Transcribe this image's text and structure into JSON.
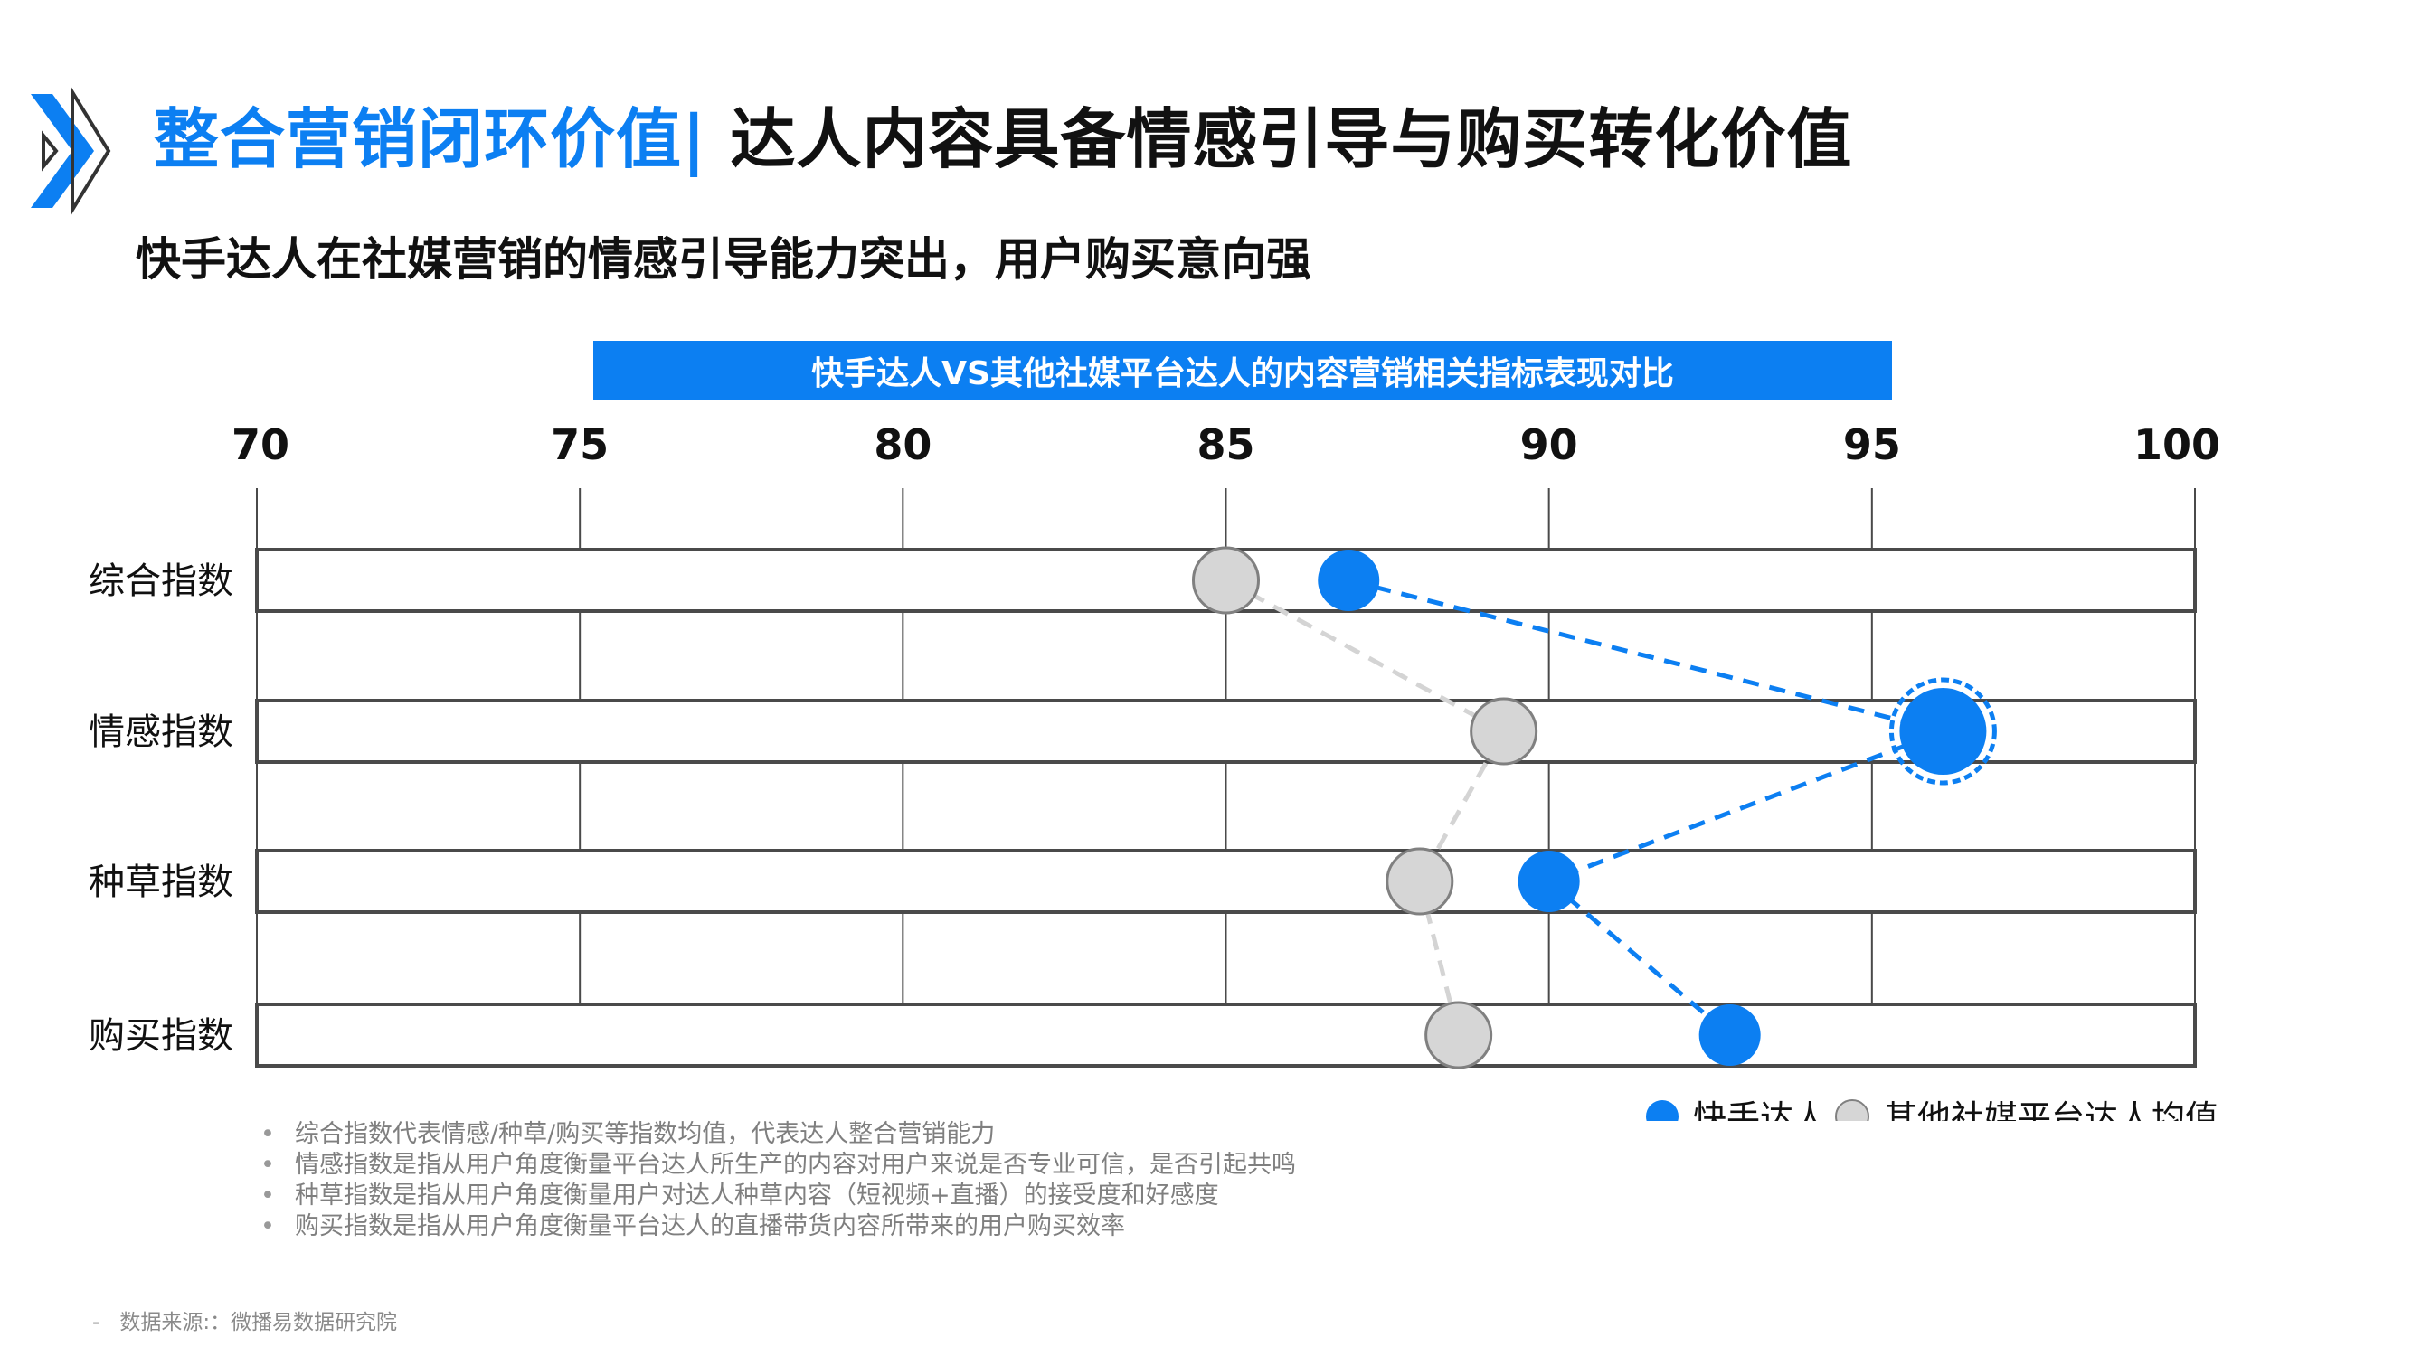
{
  "header": {
    "title_part1": "整合营销闭环价值|",
    "title_part2": " 达人内容具备情感引导与购买转化价值",
    "subtitle": "快手达人在社媒营销的情感引导能力突出，用户购买意向强"
  },
  "chart_data": {
    "type": "scatter",
    "title": "快手达人VS其他社媒平台达人的内容营销相关指标表现对比",
    "categories": [
      "综合指数",
      "情感指数",
      "种草指数",
      "购买指数"
    ],
    "x_ticks": [
      70,
      75,
      80,
      85,
      90,
      95,
      100
    ],
    "xlim": [
      70,
      100
    ],
    "grid": true,
    "legend_position": "bottom-right",
    "series": [
      {
        "name": "快手达人",
        "color": "#0c7ff2",
        "values": [
          86.9,
          96.1,
          90.0,
          92.8
        ],
        "highlight_index": 1
      },
      {
        "name": "其他社媒平台达人均值",
        "color": "#d6d6d6",
        "values": [
          85.0,
          89.3,
          88.0,
          88.6
        ]
      }
    ]
  },
  "notes": [
    "综合指数代表情感/种草/购买等指数均值，代表达人整合营销能力",
    "情感指数是指从用户角度衡量平台达人所生产的内容对用户来说是否专业可信，是否引起共鸣",
    "种草指数是指从用户角度衡量用户对达人种草内容（短视频+直播）的接受度和好感度",
    "购买指数是指从用户角度衡量平台达人的直播带货内容所带来的用户购买效率"
  ],
  "source": {
    "dash": "-",
    "text": "数据来源:：微播易数据研究院"
  }
}
